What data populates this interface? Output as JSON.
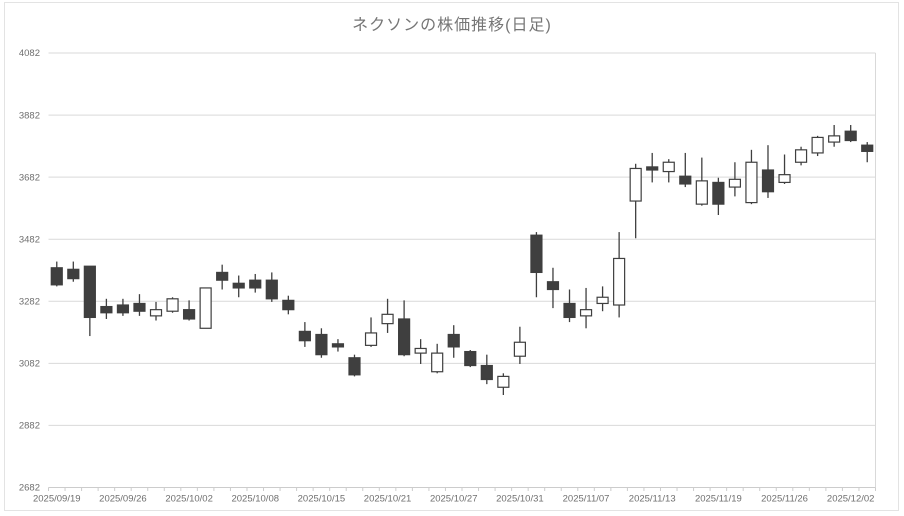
{
  "chart_data": {
    "type": "candlestick",
    "title": "ネクソンの株価推移(日足)",
    "xlabel": "",
    "ylabel": "",
    "y_axis": {
      "min": 2682,
      "max": 4082,
      "step": 200,
      "tick_labels": [
        "4082",
        "3882",
        "3682",
        "3482",
        "3282",
        "3082",
        "2882",
        "2682"
      ]
    },
    "x_labels": [
      {
        "index": 0,
        "text": "2025/09/19"
      },
      {
        "index": 4,
        "text": "2025/09/26"
      },
      {
        "index": 8,
        "text": "2025/10/02"
      },
      {
        "index": 12,
        "text": "2025/10/08"
      },
      {
        "index": 16,
        "text": "2025/10/15"
      },
      {
        "index": 20,
        "text": "2025/10/21"
      },
      {
        "index": 24,
        "text": "2025/10/27"
      },
      {
        "index": 28,
        "text": "2025/10/31"
      },
      {
        "index": 32,
        "text": "2025/11/07"
      },
      {
        "index": 36,
        "text": "2025/11/13"
      },
      {
        "index": 40,
        "text": "2025/11/19"
      },
      {
        "index": 44,
        "text": "2025/11/26"
      },
      {
        "index": 48,
        "text": "2025/12/02"
      }
    ],
    "grid": true,
    "legend": "none",
    "candles_ohlc": [
      [
        3390,
        3410,
        3330,
        3335
      ],
      [
        3385,
        3410,
        3345,
        3355
      ],
      [
        3395,
        3395,
        3170,
        3230
      ],
      [
        3265,
        3290,
        3225,
        3245
      ],
      [
        3270,
        3290,
        3235,
        3245
      ],
      [
        3275,
        3305,
        3235,
        3250
      ],
      [
        3235,
        3280,
        3220,
        3255
      ],
      [
        3250,
        3295,
        3245,
        3290
      ],
      [
        3255,
        3285,
        3220,
        3225
      ],
      [
        3195,
        3325,
        3195,
        3325
      ],
      [
        3375,
        3400,
        3320,
        3350
      ],
      [
        3340,
        3365,
        3295,
        3325
      ],
      [
        3350,
        3370,
        3310,
        3325
      ],
      [
        3350,
        3375,
        3280,
        3290
      ],
      [
        3285,
        3300,
        3240,
        3255
      ],
      [
        3185,
        3215,
        3135,
        3155
      ],
      [
        3175,
        3195,
        3100,
        3110
      ],
      [
        3145,
        3160,
        3120,
        3135
      ],
      [
        3100,
        3110,
        3040,
        3045
      ],
      [
        3140,
        3230,
        3135,
        3180
      ],
      [
        3210,
        3290,
        3180,
        3240
      ],
      [
        3225,
        3285,
        3105,
        3110
      ],
      [
        3115,
        3160,
        3080,
        3130
      ],
      [
        3055,
        3145,
        3050,
        3115
      ],
      [
        3175,
        3205,
        3100,
        3135
      ],
      [
        3120,
        3125,
        3070,
        3075
      ],
      [
        3075,
        3110,
        3015,
        3030
      ],
      [
        3005,
        3050,
        2980,
        3040
      ],
      [
        3105,
        3200,
        3080,
        3150
      ],
      [
        3495,
        3505,
        3295,
        3375
      ],
      [
        3345,
        3390,
        3260,
        3320
      ],
      [
        3275,
        3320,
        3215,
        3230
      ],
      [
        3235,
        3325,
        3195,
        3255
      ],
      [
        3275,
        3330,
        3250,
        3295
      ],
      [
        3270,
        3505,
        3230,
        3420
      ],
      [
        3605,
        3725,
        3485,
        3710
      ],
      [
        3715,
        3760,
        3665,
        3705
      ],
      [
        3700,
        3740,
        3665,
        3730
      ],
      [
        3685,
        3760,
        3650,
        3660
      ],
      [
        3595,
        3745,
        3590,
        3670
      ],
      [
        3665,
        3680,
        3560,
        3595
      ],
      [
        3650,
        3730,
        3620,
        3675
      ],
      [
        3600,
        3770,
        3595,
        3730
      ],
      [
        3705,
        3785,
        3615,
        3635
      ],
      [
        3665,
        3755,
        3660,
        3690
      ],
      [
        3730,
        3780,
        3720,
        3770
      ],
      [
        3760,
        3815,
        3750,
        3810
      ],
      [
        3795,
        3850,
        3780,
        3815
      ],
      [
        3830,
        3850,
        3795,
        3800
      ],
      [
        3785,
        3795,
        3730,
        3765
      ]
    ],
    "colors": {
      "up_fill": "#ffffff",
      "down_fill": "#3f3f3f",
      "outline": "#3f3f3f",
      "gridline": "#d9d9d9",
      "axis_line": "#cccccc",
      "axis_text": "#6f6f6f",
      "title_text": "#767676"
    }
  }
}
